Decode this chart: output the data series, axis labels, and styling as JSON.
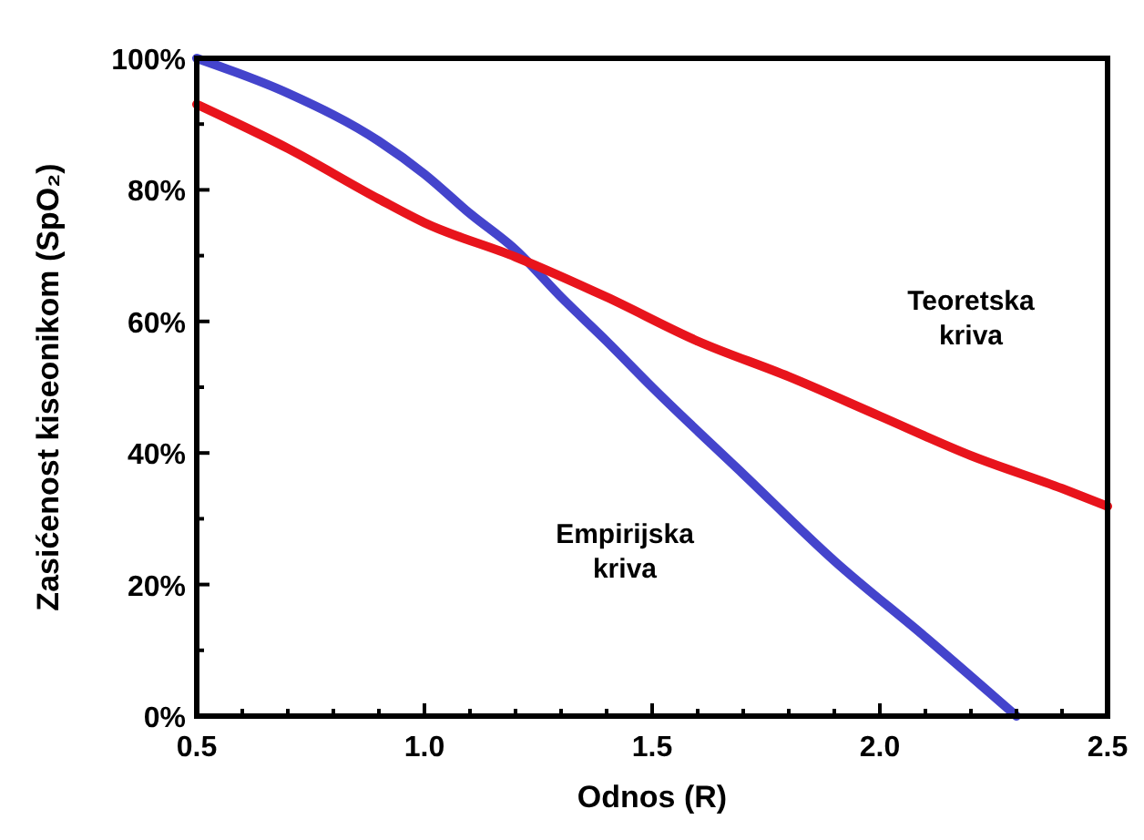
{
  "chart_data": {
    "type": "line",
    "xlabel": "Odnos (R)",
    "ylabel": "Zasićenost kiseonikom (SpO₂)",
    "xlim": [
      0.5,
      2.5
    ],
    "ylim": [
      0,
      100
    ],
    "xticks": [
      0.5,
      {
        "value": 0.6,
        "label": null
      },
      {
        "value": 0.7,
        "label": null
      },
      {
        "value": 0.8,
        "label": null
      },
      {
        "value": 0.9,
        "label": null
      },
      {
        "value": 1.0,
        "label": "1.0"
      },
      {
        "value": 1.1,
        "label": null
      },
      {
        "value": 1.2,
        "label": null
      },
      {
        "value": 1.3,
        "label": null
      },
      {
        "value": 1.4,
        "label": null
      },
      1.5,
      {
        "value": 1.6,
        "label": null
      },
      {
        "value": 1.7,
        "label": null
      },
      {
        "value": 1.8,
        "label": null
      },
      {
        "value": 1.9,
        "label": null
      },
      {
        "value": 2.0,
        "label": "2.0"
      },
      {
        "value": 2.1,
        "label": null
      },
      {
        "value": 2.2,
        "label": null
      },
      {
        "value": 2.3,
        "label": null
      },
      {
        "value": 2.4,
        "label": null
      },
      2.5
    ],
    "yticks": [
      {
        "value": 0,
        "label": "0%"
      },
      {
        "value": 10,
        "label": null
      },
      {
        "value": 20,
        "label": "20%"
      },
      {
        "value": 30,
        "label": null
      },
      {
        "value": 40,
        "label": "40%"
      },
      {
        "value": 50,
        "label": null
      },
      {
        "value": 60,
        "label": "60%"
      },
      {
        "value": 70,
        "label": null
      },
      {
        "value": 80,
        "label": "80%"
      },
      {
        "value": 90,
        "label": null
      },
      {
        "value": 100,
        "label": "100%"
      }
    ],
    "grid": false,
    "line_style": "solid",
    "marker": "none",
    "series": [
      {
        "name": "Empirijska\nkriva",
        "color": "#4444cc",
        "x": [
          0.5,
          0.7,
          0.9,
          1.0,
          1.1,
          1.2,
          1.3,
          1.4,
          1.5,
          1.7,
          1.9,
          2.1,
          2.3
        ],
        "values": [
          100,
          94.7,
          87.4,
          82.4,
          76.4,
          70.9,
          63.7,
          57,
          50,
          36.8,
          23.6,
          12,
          0
        ]
      },
      {
        "name": "Teoretska\nkriva",
        "color": "#e8141c",
        "x": [
          0.5,
          0.7,
          0.9,
          1.0,
          1.2,
          1.4,
          1.6,
          1.8,
          2.0,
          2.2,
          2.4,
          2.5
        ],
        "values": [
          93,
          86.3,
          78.6,
          75,
          69.8,
          63.7,
          57,
          51.6,
          45.6,
          39.6,
          34.6,
          31.9
        ]
      }
    ]
  }
}
